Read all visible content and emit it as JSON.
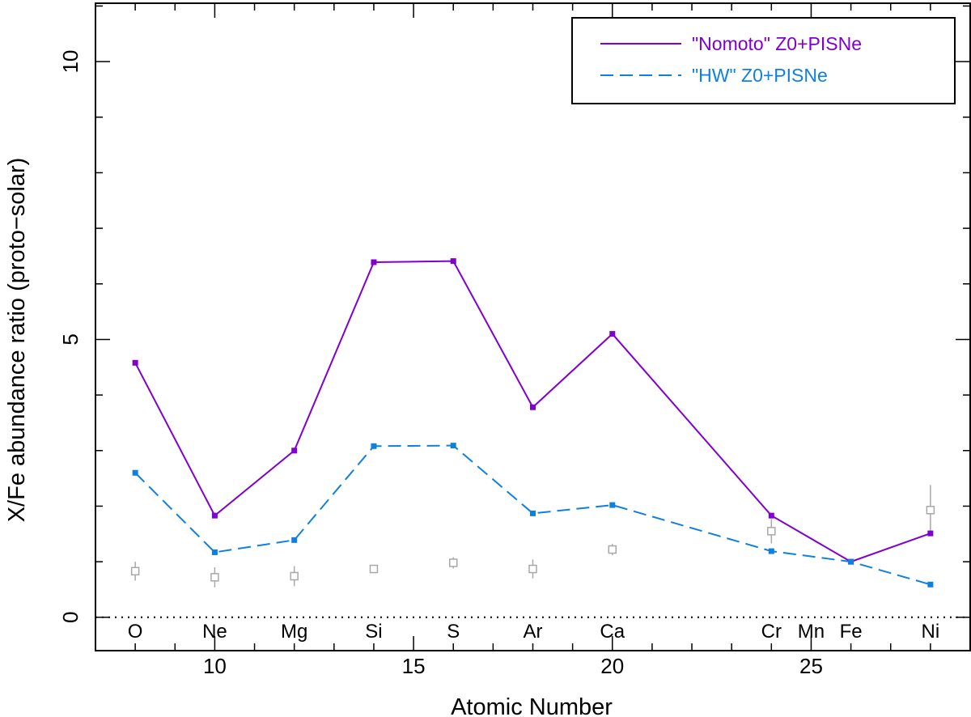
{
  "chart_data": {
    "type": "line",
    "xlabel": "Atomic Number",
    "ylabel": "X/Fe abundance ratio (proto−solar)",
    "xlim": [
      7,
      29
    ],
    "ylim": [
      -0.6,
      11.05
    ],
    "x_ticks": [
      10,
      15,
      20,
      25
    ],
    "y_ticks": [
      0,
      5,
      10
    ],
    "x_minor_step": 1,
    "y_minor_step": 1,
    "reference_line": {
      "y": 0,
      "style": "dotted"
    },
    "legend": {
      "placement": "top-right"
    },
    "colors": {
      "nomoto": "#8000d0",
      "hw": "#1080e0",
      "observed": "#a8a8a8"
    },
    "element_labels": [
      {
        "x": 8,
        "label": "O"
      },
      {
        "x": 10,
        "label": "Ne"
      },
      {
        "x": 12,
        "label": "Mg"
      },
      {
        "x": 14,
        "label": "Si"
      },
      {
        "x": 16,
        "label": "S"
      },
      {
        "x": 18,
        "label": "Ar"
      },
      {
        "x": 20,
        "label": "Ca"
      },
      {
        "x": 24,
        "label": "Cr"
      },
      {
        "x": 25,
        "label": "Mn"
      },
      {
        "x": 26,
        "label": "Fe"
      },
      {
        "x": 28,
        "label": "Ni"
      }
    ],
    "series": [
      {
        "name": "\"Nomoto\" Z0+PISNe",
        "style": "solid",
        "x": [
          8,
          10,
          12,
          14,
          16,
          18,
          20,
          24,
          26,
          28
        ],
        "y": [
          4.58,
          1.83,
          3.0,
          6.39,
          6.41,
          3.78,
          5.1,
          1.83,
          1.0,
          1.51
        ]
      },
      {
        "name": "\"HW\" Z0+PISNe",
        "style": "dashed",
        "x": [
          8,
          10,
          12,
          14,
          16,
          18,
          20,
          24,
          26,
          28
        ],
        "y": [
          2.6,
          1.17,
          1.39,
          3.08,
          3.09,
          1.87,
          2.02,
          1.19,
          1.0,
          0.59
        ]
      }
    ],
    "observed": {
      "x": [
        8,
        10,
        12,
        14,
        16,
        18,
        20,
        24,
        28
      ],
      "y": [
        0.83,
        0.72,
        0.74,
        0.87,
        0.98,
        0.87,
        1.22,
        1.55,
        1.93
      ],
      "err": [
        0.17,
        0.18,
        0.18,
        0.07,
        0.1,
        0.17,
        0.1,
        0.22,
        0.45
      ]
    }
  }
}
